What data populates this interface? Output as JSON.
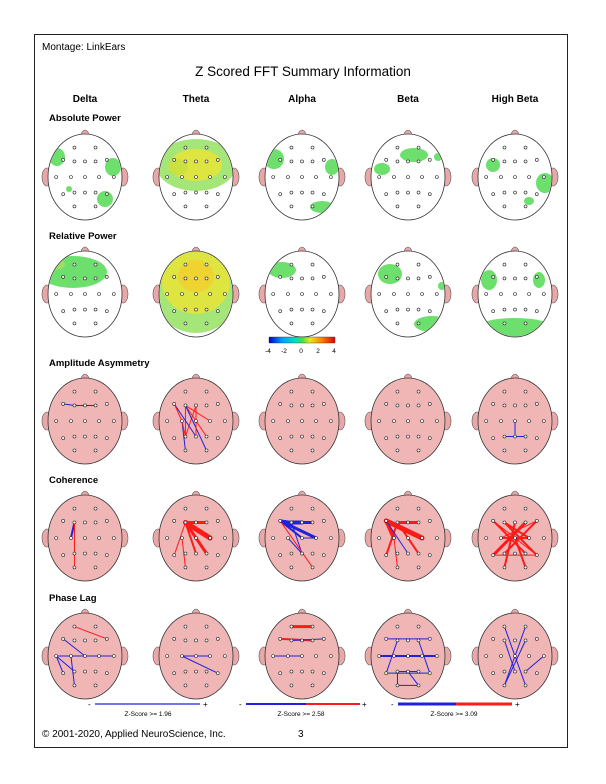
{
  "montage": "Montage:  LinkEars",
  "title": "Z Scored FFT Summary Information",
  "bands": [
    "Delta",
    "Theta",
    "Alpha",
    "Beta",
    "High Beta"
  ],
  "rows": {
    "absolute_power": "Absolute Power",
    "relative_power": "Relative Power",
    "amplitude_asymmetry": "Amplitude Asymmetry",
    "coherence": "Coherence",
    "phase_lag": "Phase Lag"
  },
  "colorbar": {
    "ticks": [
      "-4",
      "-2",
      "0",
      "2",
      "4"
    ]
  },
  "legend": {
    "z1": "Z-Score >= 1.96",
    "z2": "Z-Score >= 2.58",
    "z3": "Z-Score >= 3.09",
    "minus": "-",
    "plus": "+"
  },
  "footer": "© 2001-2020, Applied NeuroScience, Inc.",
  "page_number": "3",
  "colors": {
    "scalp_pink": "#f0b6b6",
    "ear_pink": "#e8a8a8",
    "green": "#5ddb5d",
    "yellow": "#e4e43a",
    "red": "#ff1a1a",
    "blue": "#2020e0"
  }
}
